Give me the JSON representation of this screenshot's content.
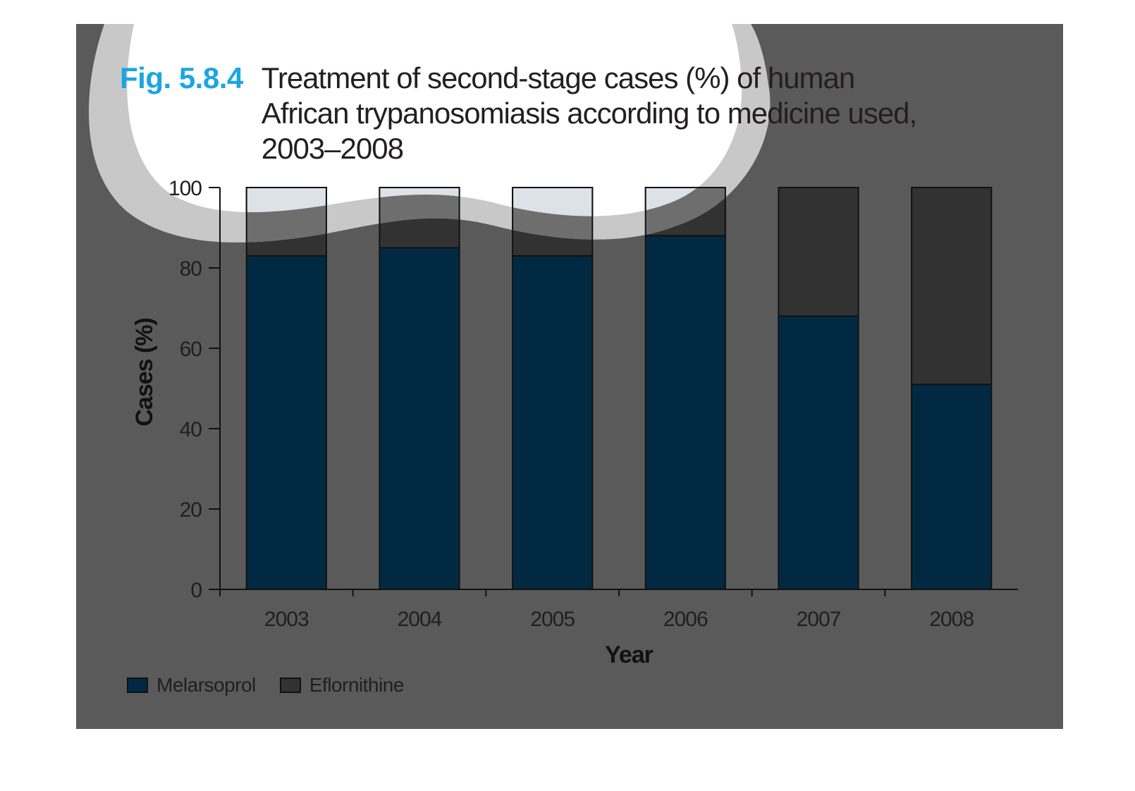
{
  "figure": {
    "label": "Fig. 5.8.4",
    "title_lines": [
      "Treatment of second-stage cases (%) of human",
      "African trypanosomiasis according to medicine used,",
      "2003–2008"
    ]
  },
  "colors": {
    "panel_background": "#5a5a5a",
    "melarsoprol": "#012a42",
    "eflornithine": "#323232",
    "highlight": "#ffffff",
    "figure_label": "#1aa6e0"
  },
  "chart_data": {
    "type": "bar",
    "stacked": true,
    "categories": [
      "2003",
      "2004",
      "2005",
      "2006",
      "2007",
      "2008"
    ],
    "series": [
      {
        "name": "Melarsoprol",
        "values": [
          83,
          85,
          83,
          88,
          68,
          51
        ]
      },
      {
        "name": "Eflornithine",
        "values": [
          17,
          15,
          17,
          12,
          32,
          49
        ]
      }
    ],
    "xlabel": "Year",
    "ylabel": "Cases (%)",
    "ylim": [
      0,
      100
    ],
    "yticks": [
      0,
      20,
      40,
      60,
      80,
      100
    ],
    "grid": false,
    "legend_position": "bottom-left"
  }
}
